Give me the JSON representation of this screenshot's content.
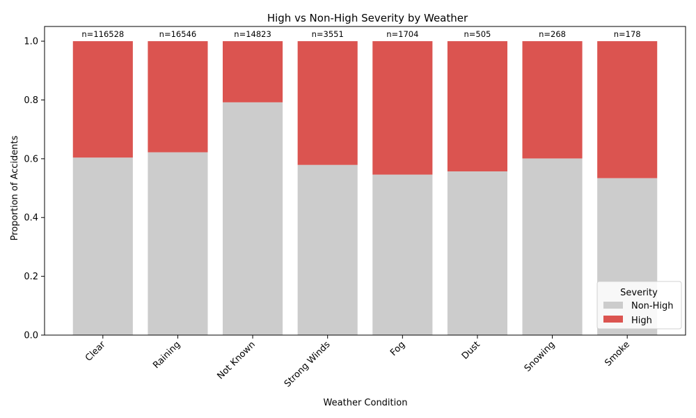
{
  "chart_data": {
    "type": "bar",
    "stacked": true,
    "title": "High vs Non-High Severity by Weather",
    "xlabel": "Weather Condition",
    "ylabel": "Proportion of Accidents",
    "ylim": [
      0,
      1.05
    ],
    "yticks": [
      "0.0",
      "0.2",
      "0.4",
      "0.6",
      "0.8",
      "1.0"
    ],
    "categories": [
      "Clear",
      "Raining",
      "Not Known",
      "Strong Winds",
      "Fog",
      "Dust",
      "Snowing",
      "Smoke"
    ],
    "counts": [
      "n=116528",
      "n=16546",
      "n=14823",
      "n=3551",
      "n=1704",
      "n=505",
      "n=268",
      "n=178"
    ],
    "series": [
      {
        "name": "Non-High",
        "color": "#cccccc",
        "values": [
          0.604,
          0.622,
          0.792,
          0.579,
          0.546,
          0.557,
          0.601,
          0.534
        ]
      },
      {
        "name": "High",
        "color": "#db5450",
        "values": [
          0.396,
          0.378,
          0.208,
          0.421,
          0.454,
          0.443,
          0.399,
          0.466
        ]
      }
    ],
    "legend": {
      "title": "Severity",
      "position": "lower-right"
    },
    "grid": false
  }
}
